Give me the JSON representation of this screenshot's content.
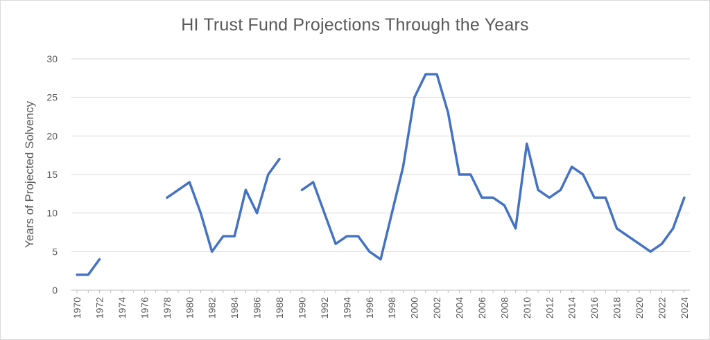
{
  "chart_data": {
    "type": "line",
    "title": "HI Trust Fund Projections Through the Years",
    "xlabel": "",
    "ylabel": "Years of Projected Solvency",
    "ylim": [
      0,
      30
    ],
    "yticks": [
      "0",
      "5",
      "10",
      "15",
      "20",
      "25",
      "30"
    ],
    "xticks": [
      "1970",
      "1972",
      "1974",
      "1976",
      "1978",
      "1980",
      "1982",
      "1984",
      "1986",
      "1988",
      "1990",
      "1992",
      "1994",
      "1996",
      "1998",
      "2000",
      "2002",
      "2004",
      "2006",
      "2008",
      "2010",
      "2012",
      "2014",
      "2016",
      "2018",
      "2020",
      "2022",
      "2024"
    ],
    "grid": true,
    "legend": "none",
    "line_color": "#4472c4",
    "x": [
      1970,
      1971,
      1972,
      1973,
      1974,
      1975,
      1976,
      1977,
      1978,
      1979,
      1980,
      1981,
      1982,
      1983,
      1984,
      1985,
      1986,
      1987,
      1988,
      1989,
      1990,
      1991,
      1992,
      1993,
      1994,
      1995,
      1996,
      1997,
      1998,
      1999,
      2000,
      2001,
      2002,
      2003,
      2004,
      2005,
      2006,
      2007,
      2008,
      2009,
      2010,
      2011,
      2012,
      2013,
      2014,
      2015,
      2016,
      2017,
      2018,
      2019,
      2020,
      2021,
      2022,
      2023,
      2024
    ],
    "series": [
      {
        "values": [
          2,
          2,
          4,
          null,
          null,
          null,
          null,
          null,
          12,
          13,
          14,
          10,
          5,
          7,
          7,
          13,
          10,
          15,
          17,
          null,
          13,
          14,
          10,
          6,
          7,
          7,
          5,
          4,
          10,
          16,
          25,
          28,
          28,
          23,
          15,
          15,
          12,
          12,
          11,
          8,
          19,
          13,
          12,
          13,
          16,
          15,
          12,
          12,
          8,
          7,
          6,
          5,
          6,
          8,
          12
        ]
      }
    ]
  }
}
